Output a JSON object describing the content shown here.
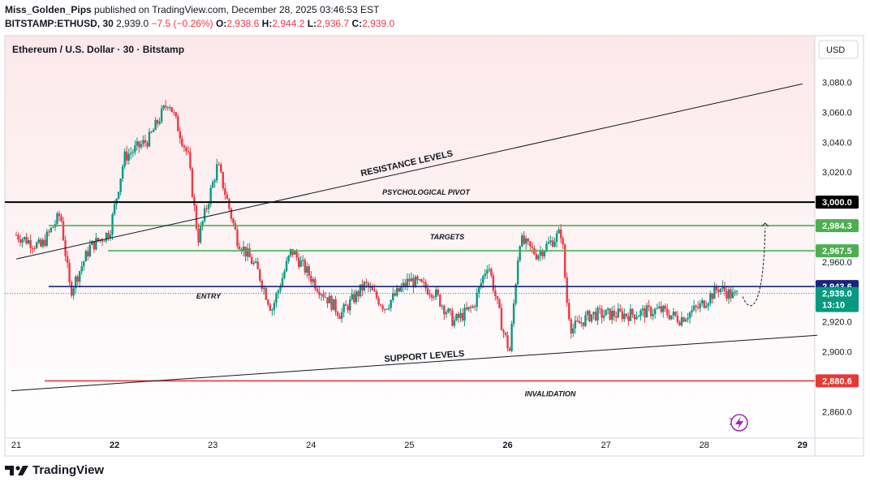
{
  "header": {
    "author": "Miss_Golden_Pips",
    "published_text": "published on TradingView.com, December 28, 2025 03:46:53 EST",
    "symbol_interval": "BITSTAMP:ETHUSD, 30",
    "last_price": "2,939.0",
    "change": "−7.5 (−0.26%)",
    "o_label": "O:",
    "o_value": "2,938.6",
    "h_label": "H:",
    "h_value": "2,944.2",
    "l_label": "L:",
    "l_value": "2,936.7",
    "c_label": "C:",
    "c_value": "2,939.0"
  },
  "chart_title": "Ethereum / U.S. Dollar · 30 · Bitstamp",
  "currency_button": "USD",
  "brand": "TradingView",
  "colors": {
    "up": "#089981",
    "down": "#f23645",
    "background_top": "#fce9eb",
    "background_bottom": "#ffffff",
    "green_level": "#4caf50",
    "blue_level": "#1a237e",
    "red_level": "#e53935",
    "black_level": "#000000"
  },
  "chart_data": {
    "type": "candlestick",
    "title": "Ethereum / U.S. Dollar · 30 · Bitstamp",
    "interval_minutes": 30,
    "ylim": [
      2850,
      3095
    ],
    "y_ticks": [
      "3,080.0",
      "3,060.0",
      "3,040.0",
      "3,020.0",
      "2,960.0",
      "2,920.0",
      "2,900.0",
      "2,860.0"
    ],
    "x_ticks": [
      "21",
      "22",
      "23",
      "24",
      "25",
      "26",
      "27",
      "28",
      "29"
    ],
    "grid": false,
    "path": [
      [
        21.0,
        2978
      ],
      [
        21.25,
        2970
      ],
      [
        21.45,
        2992
      ],
      [
        21.55,
        2940
      ],
      [
        21.75,
        2970
      ],
      [
        21.95,
        2980
      ],
      [
        22.1,
        3030
      ],
      [
        22.35,
        3042
      ],
      [
        22.55,
        3068
      ],
      [
        22.75,
        3030
      ],
      [
        22.85,
        2975
      ],
      [
        23.05,
        3025
      ],
      [
        23.25,
        2975
      ],
      [
        23.45,
        2955
      ],
      [
        23.6,
        2928
      ],
      [
        23.8,
        2968
      ],
      [
        24.05,
        2945
      ],
      [
        24.3,
        2925
      ],
      [
        24.55,
        2945
      ],
      [
        24.75,
        2930
      ],
      [
        25.0,
        2948
      ],
      [
        25.25,
        2940
      ],
      [
        25.45,
        2920
      ],
      [
        25.65,
        2930
      ],
      [
        25.8,
        2960
      ],
      [
        25.95,
        2915
      ],
      [
        26.02,
        2900
      ],
      [
        26.12,
        2975
      ],
      [
        26.3,
        2965
      ],
      [
        26.55,
        2980
      ],
      [
        26.6,
        2935
      ],
      [
        26.65,
        2915
      ],
      [
        26.85,
        2925
      ],
      [
        27.25,
        2925
      ],
      [
        27.55,
        2928
      ],
      [
        27.75,
        2922
      ],
      [
        27.95,
        2930
      ],
      [
        28.15,
        2943
      ],
      [
        28.3,
        2937
      ],
      [
        28.35,
        2939
      ]
    ],
    "last_price": 2939.0,
    "countdown": "13:10",
    "levels": [
      {
        "name": "psychological-pivot",
        "price": 3000.0,
        "label": "3,000.0",
        "color": "#000000",
        "text": "PSYCHOLOGICAL PIVOT"
      },
      {
        "name": "target-high",
        "price": 2984.3,
        "label": "2,984.3",
        "color": "#4caf50",
        "text": "TARGETS"
      },
      {
        "name": "target-low",
        "price": 2967.5,
        "label": "2,967.5",
        "color": "#4caf50",
        "text": ""
      },
      {
        "name": "entry",
        "price": 2943.6,
        "label": "2,943.6",
        "color": "#1a237e",
        "text": "ENTRY"
      },
      {
        "name": "invalidation",
        "price": 2880.6,
        "label": "2,880.6",
        "color": "#e53935",
        "text": "INVALIDATION"
      }
    ],
    "trendlines": [
      {
        "name": "resistance-line",
        "label": "RESISTANCE LEVELS",
        "from": [
          21.0,
          2962
        ],
        "to": [
          29.0,
          3079
        ]
      },
      {
        "name": "support-line",
        "label": "SUPPORT LEVELS",
        "from": [
          20.95,
          2874
        ],
        "to": [
          29.15,
          2911
        ]
      }
    ],
    "projection": {
      "from": [
        28.35,
        2938
      ],
      "to": [
        28.62,
        2986
      ]
    }
  }
}
